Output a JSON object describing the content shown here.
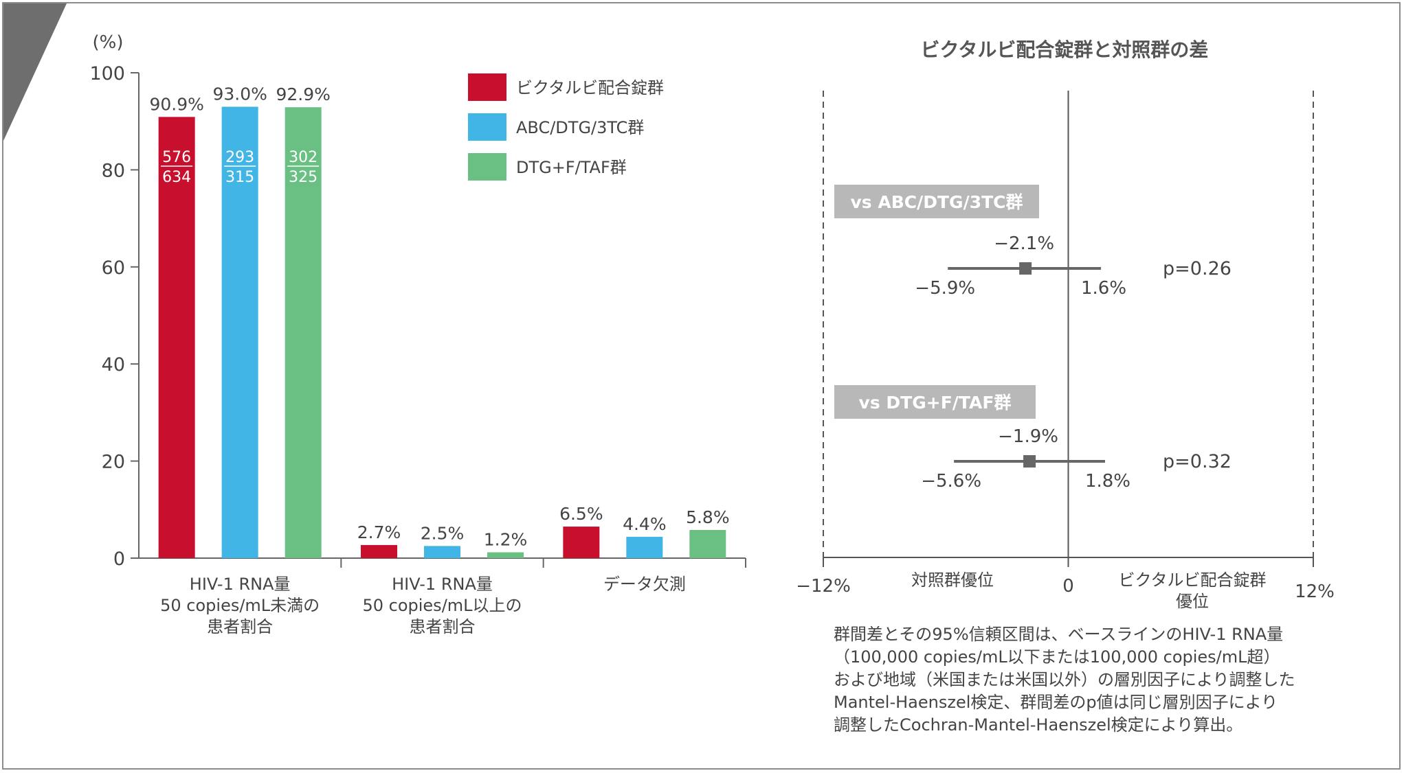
{
  "chart_data": [
    {
      "type": "bar",
      "ylabel": "(%)",
      "ylim": [
        0,
        100
      ],
      "yticks": [
        "0",
        "20",
        "40",
        "60",
        "80",
        "100"
      ],
      "categories": [
        [
          "HIV-1 RNA量",
          "50 copies/mL未満の",
          "患者割合"
        ],
        [
          "HIV-1 RNA量",
          "50 copies/mL以上の",
          "患者割合"
        ],
        [
          "データ欠測"
        ]
      ],
      "series": [
        {
          "name": "ビクタルビ配合錠群",
          "color": "#c8102e",
          "values": [
            90.9,
            2.7,
            6.5
          ],
          "labels": [
            "90.9%",
            "2.7%",
            "6.5%"
          ],
          "fraction": [
            "576",
            "634"
          ]
        },
        {
          "name": "ABC/DTG/3TC群",
          "color": "#41b6e6",
          "values": [
            93.0,
            2.5,
            4.4
          ],
          "labels": [
            "93.0%",
            "2.5%",
            "4.4%"
          ],
          "fraction": [
            "293",
            "315"
          ]
        },
        {
          "name": "DTG+F/TAF群",
          "color": "#6abf83",
          "values": [
            92.9,
            1.2,
            5.8
          ],
          "labels": [
            "92.9%",
            "1.2%",
            "5.8%"
          ],
          "fraction": [
            "302",
            "325"
          ]
        }
      ],
      "legend": "top-right"
    },
    {
      "type": "scatter",
      "title": "ビクタルビ配合錠群と対照群の差",
      "xlim": [
        -12,
        12
      ],
      "xticks": [
        "−12%",
        "0",
        "12%"
      ],
      "x_side_labels": {
        "left": [
          "対照群優位"
        ],
        "right": [
          "ビクタルビ配合錠群",
          "優位"
        ]
      },
      "comparisons": [
        {
          "label": "vs ABC/DTG/3TC群",
          "estimate": -2.1,
          "lower": -5.9,
          "upper": 1.6,
          "estimate_label": "−2.1%",
          "lower_label": "−5.9%",
          "upper_label": "1.6%",
          "p": "p=0.26"
        },
        {
          "label": "vs DTG+F/TAF群",
          "estimate": -1.9,
          "lower": -5.6,
          "upper": 1.8,
          "estimate_label": "−1.9%",
          "lower_label": "−5.6%",
          "upper_label": "1.8%",
          "p": "p=0.32"
        }
      ]
    }
  ],
  "footnote": [
    "群間差とその95%信頼区間は、ベースラインのHIV-1 RNA量",
    "（100,000 copies/mL以下または100,000 copies/mL超）",
    "および地域（米国または米国以外）の層別因子により調整した",
    "Mantel-Haenszel検定、群間差のp値は同じ層別因子により",
    "調整したCochran-Mantel-Haenszel検定により算出。"
  ]
}
